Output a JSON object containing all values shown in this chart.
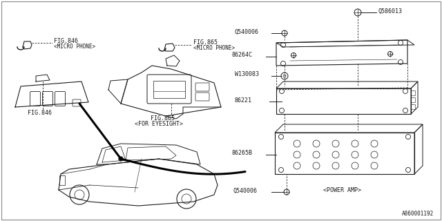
{
  "bg_color": "#ffffff",
  "line_color": "#1a1a1a",
  "text_color": "#1a1a1a",
  "part_labels": {
    "fig846_label": "FIG.846",
    "fig846_sub": "<MICRO PHONE>",
    "fig846_bottom": "FIG.846",
    "fig865_label": "FIG.865",
    "fig865_sub": "<MICRO PHONE>",
    "fig865_bottom": "FIG.865",
    "fig865_note": "<FOR EYESIGHT>",
    "q586013": "Q586013",
    "q540006_top": "Q540006",
    "b86264c": "86264C",
    "w130083": "W130083",
    "b86221": "86221",
    "b86265b": "86265B",
    "q540006_bot": "Q540006",
    "power_amp": "<POWER AMP>",
    "ref_code": "A860001192"
  },
  "font_size": 6.0,
  "font_family": "monospace",
  "border_color": "#888888"
}
